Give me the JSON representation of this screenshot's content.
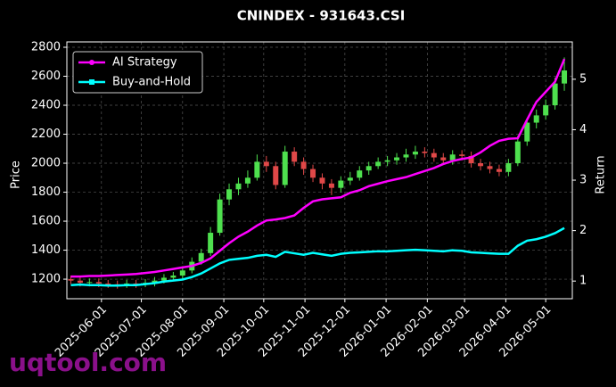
{
  "chart_data": {
    "type": "candlestick",
    "title": "CNINDEX - 931643.CSI",
    "ylabel": "Price",
    "y2label": "Return",
    "watermark": "uqtool.com",
    "x": [
      "2025-05-09",
      "2025-05-16",
      "2025-05-23",
      "2025-05-30",
      "2025-06-06",
      "2025-06-13",
      "2025-06-20",
      "2025-06-27",
      "2025-07-04",
      "2025-07-11",
      "2025-07-18",
      "2025-07-25",
      "2025-08-01",
      "2025-08-08",
      "2025-08-15",
      "2025-08-22",
      "2025-08-29",
      "2025-09-05",
      "2025-09-12",
      "2025-09-19",
      "2025-09-26",
      "2025-10-03",
      "2025-10-10",
      "2025-10-17",
      "2025-10-24",
      "2025-10-31",
      "2025-11-07",
      "2025-11-14",
      "2025-11-21",
      "2025-11-28",
      "2025-12-05",
      "2025-12-12",
      "2025-12-19",
      "2025-12-26",
      "2026-01-02",
      "2026-01-09",
      "2026-01-16",
      "2026-01-23",
      "2026-01-30",
      "2026-02-06",
      "2026-02-13",
      "2026-02-20",
      "2026-02-27",
      "2026-03-06",
      "2026-03-13",
      "2026-03-20",
      "2026-03-27",
      "2026-04-03",
      "2026-04-10",
      "2026-04-17",
      "2026-04-24",
      "2026-05-01",
      "2026-05-08",
      "2026-05-15"
    ],
    "open": [
      1200,
      1190,
      1175,
      1180,
      1170,
      1165,
      1160,
      1170,
      1165,
      1175,
      1190,
      1210,
      1225,
      1260,
      1320,
      1380,
      1520,
      1750,
      1820,
      1860,
      1900,
      2010,
      1980,
      1850,
      2080,
      2010,
      1960,
      1900,
      1860,
      1830,
      1880,
      1900,
      1950,
      1980,
      2010,
      2020,
      2040,
      2060,
      2080,
      2070,
      2040,
      2020,
      2060,
      2050,
      2000,
      1980,
      1960,
      1940,
      2000,
      2150,
      2280,
      2330,
      2400,
      2550
    ],
    "high": [
      1225,
      1210,
      1205,
      1205,
      1195,
      1190,
      1195,
      1195,
      1200,
      1215,
      1235,
      1250,
      1290,
      1350,
      1410,
      1560,
      1790,
      1860,
      1900,
      1950,
      2060,
      2050,
      2010,
      2120,
      2110,
      2040,
      1990,
      1930,
      1890,
      1910,
      1940,
      1980,
      2010,
      2040,
      2050,
      2070,
      2100,
      2120,
      2110,
      2100,
      2070,
      2090,
      2090,
      2080,
      2030,
      2010,
      1990,
      2030,
      2190,
      2310,
      2370,
      2440,
      2590,
      2730
    ],
    "low": [
      1165,
      1150,
      1150,
      1145,
      1140,
      1135,
      1140,
      1140,
      1145,
      1150,
      1170,
      1190,
      1200,
      1240,
      1300,
      1360,
      1500,
      1710,
      1780,
      1830,
      1880,
      1940,
      1820,
      1830,
      1980,
      1920,
      1870,
      1820,
      1780,
      1800,
      1850,
      1880,
      1920,
      1960,
      1980,
      1990,
      2010,
      2030,
      2040,
      2010,
      1990,
      1990,
      2020,
      1970,
      1950,
      1930,
      1910,
      1910,
      1980,
      2120,
      2240,
      2300,
      2370,
      2500
    ],
    "close": [
      1190,
      1175,
      1180,
      1170,
      1165,
      1160,
      1170,
      1165,
      1175,
      1190,
      1210,
      1225,
      1260,
      1320,
      1380,
      1520,
      1750,
      1820,
      1860,
      1900,
      2010,
      1980,
      1850,
      2080,
      2010,
      1960,
      1900,
      1860,
      1830,
      1880,
      1900,
      1950,
      1980,
      2010,
      2020,
      2040,
      2060,
      2080,
      2070,
      2040,
      2020,
      2060,
      2050,
      2000,
      1980,
      1960,
      1940,
      2000,
      2150,
      2280,
      2330,
      2400,
      2550,
      2640
    ],
    "up_color": "#4ee04e",
    "down_color": "#e04848",
    "series": [
      {
        "name": "AI Strategy",
        "color": "#ff00ff",
        "axis": "y2",
        "marker": "circle",
        "values": [
          1.09,
          1.09,
          1.1,
          1.1,
          1.11,
          1.12,
          1.13,
          1.14,
          1.16,
          1.18,
          1.21,
          1.24,
          1.27,
          1.3,
          1.36,
          1.45,
          1.6,
          1.75,
          1.88,
          1.98,
          2.1,
          2.2,
          2.22,
          2.25,
          2.3,
          2.45,
          2.58,
          2.62,
          2.64,
          2.66,
          2.75,
          2.8,
          2.88,
          2.93,
          2.98,
          3.02,
          3.06,
          3.12,
          3.18,
          3.24,
          3.32,
          3.38,
          3.42,
          3.45,
          3.55,
          3.68,
          3.78,
          3.82,
          3.83,
          4.2,
          4.55,
          4.75,
          4.95,
          5.4
        ]
      },
      {
        "name": "Buy-and-Hold",
        "color": "#00ffff",
        "axis": "y2",
        "marker": "square",
        "values": [
          0.92,
          0.93,
          0.92,
          0.92,
          0.91,
          0.91,
          0.92,
          0.92,
          0.94,
          0.96,
          0.99,
          1.01,
          1.03,
          1.08,
          1.15,
          1.25,
          1.35,
          1.42,
          1.44,
          1.46,
          1.5,
          1.52,
          1.48,
          1.58,
          1.55,
          1.52,
          1.56,
          1.53,
          1.5,
          1.54,
          1.56,
          1.57,
          1.58,
          1.59,
          1.59,
          1.6,
          1.61,
          1.62,
          1.61,
          1.6,
          1.59,
          1.61,
          1.6,
          1.57,
          1.56,
          1.55,
          1.54,
          1.54,
          1.7,
          1.8,
          1.83,
          1.88,
          1.95,
          2.05
        ]
      }
    ],
    "xlim": [
      "2025-05-06",
      "2026-05-21"
    ],
    "xticks": [
      "2025-06-01",
      "2025-07-01",
      "2025-08-01",
      "2025-09-01",
      "2025-10-01",
      "2025-11-01",
      "2025-12-01",
      "2026-01-01",
      "2026-02-01",
      "2026-03-01",
      "2026-04-01",
      "2026-05-01"
    ],
    "ylim": [
      1065,
      2837
    ],
    "yticks": [
      1200,
      1400,
      1600,
      1800,
      2000,
      2200,
      2400,
      2600,
      2800
    ],
    "y2lim": [
      0.65,
      5.74
    ],
    "y2ticks": [
      1,
      2,
      3,
      4,
      5
    ],
    "grid": true,
    "legend": "upper left"
  }
}
